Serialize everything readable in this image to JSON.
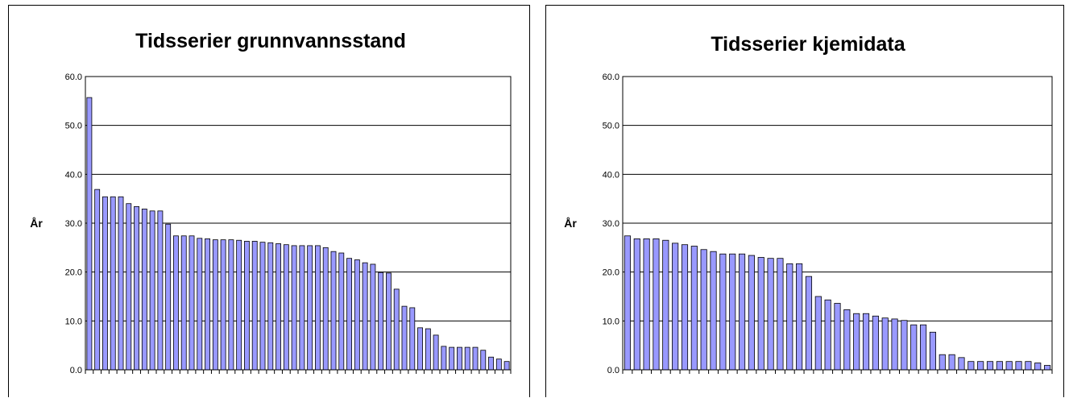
{
  "chart_data": [
    {
      "type": "bar",
      "title": "Tidsserier grunnvannsstand",
      "xlabel": "",
      "ylabel": "År",
      "ylim": [
        0,
        60
      ],
      "yticks": [
        "0.0",
        "10.0",
        "20.0",
        "30.0",
        "40.0",
        "50.0",
        "60.0"
      ],
      "grid": true,
      "colors": {
        "bar_fill": "#9999ff",
        "bar_stroke": "#000000",
        "grid": "#000000"
      },
      "values": [
        55.7,
        36.9,
        35.4,
        35.4,
        35.4,
        34.0,
        33.4,
        32.9,
        32.5,
        32.5,
        29.8,
        27.4,
        27.4,
        27.4,
        26.9,
        26.8,
        26.6,
        26.6,
        26.6,
        26.5,
        26.3,
        26.3,
        26.1,
        26.0,
        25.8,
        25.6,
        25.4,
        25.4,
        25.4,
        25.4,
        25.0,
        24.2,
        23.9,
        22.8,
        22.5,
        21.9,
        21.6,
        19.9,
        19.8,
        16.5,
        13.0,
        12.7,
        8.6,
        8.4,
        7.1,
        4.8,
        4.6,
        4.6,
        4.6,
        4.6,
        4.0,
        2.6,
        2.2,
        1.7
      ]
    },
    {
      "type": "bar",
      "title": "Tidsserier kjemidata",
      "xlabel": "",
      "ylabel": "År",
      "ylim": [
        0,
        60
      ],
      "yticks": [
        "0.0",
        "10.0",
        "20.0",
        "30.0",
        "40.0",
        "50.0",
        "60.0"
      ],
      "grid": true,
      "colors": {
        "bar_fill": "#9999ff",
        "bar_stroke": "#000000",
        "grid": "#000000"
      },
      "values": [
        27.4,
        26.8,
        26.8,
        26.8,
        26.5,
        25.9,
        25.6,
        25.3,
        24.6,
        24.2,
        23.7,
        23.7,
        23.7,
        23.4,
        23.0,
        22.8,
        22.8,
        21.7,
        21.7,
        19.1,
        15.0,
        14.3,
        13.6,
        12.3,
        11.5,
        11.5,
        11.0,
        10.6,
        10.4,
        10.1,
        9.2,
        9.2,
        7.7,
        3.1,
        3.1,
        2.5,
        1.7,
        1.7,
        1.7,
        1.7,
        1.7,
        1.7,
        1.7,
        1.4,
        0.9
      ]
    }
  ]
}
